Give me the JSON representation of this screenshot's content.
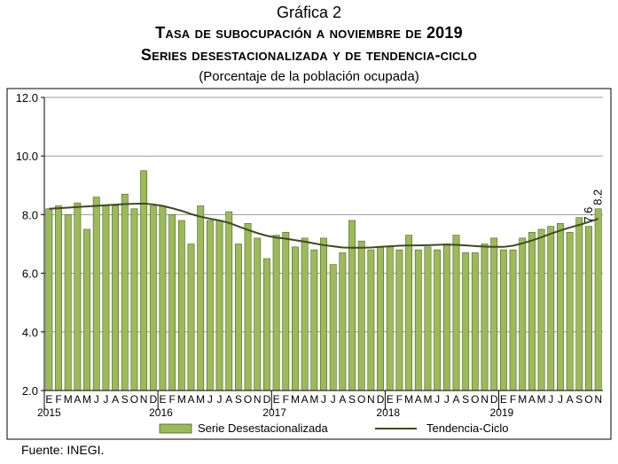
{
  "figure_label": "Gráfica 2",
  "title_line1": "Tasa de subocupación a noviembre de 2019",
  "title_line2": "Series desestacionalizada y de tendencia-ciclo",
  "subtitle": "(Porcentaje de la población ocupada)",
  "source": "Fuente: INEGI.",
  "colors": {
    "bar_fill": "#9bbb59",
    "bar_stroke": "#4f6228",
    "trend": "#404a1f",
    "grid": "#9a9a9a"
  },
  "chart_data": {
    "type": "bar",
    "title": "Tasa de subocupación a noviembre de 2019",
    "ylim": [
      2.0,
      12.0
    ],
    "yticks": [
      "2.0",
      "4.0",
      "6.0",
      "8.0",
      "10.0",
      "12.0"
    ],
    "grid": true,
    "legend_position": "bottom",
    "month_labels": [
      "E",
      "F",
      "M",
      "A",
      "M",
      "J",
      "J",
      "A",
      "S",
      "O",
      "N",
      "D"
    ],
    "years": [
      "2015",
      "2016",
      "2017",
      "2018",
      "2019"
    ],
    "annotations": [
      "7.6",
      "8.2"
    ],
    "categories": [
      "2015-01",
      "2015-02",
      "2015-03",
      "2015-04",
      "2015-05",
      "2015-06",
      "2015-07",
      "2015-08",
      "2015-09",
      "2015-10",
      "2015-11",
      "2015-12",
      "2016-01",
      "2016-02",
      "2016-03",
      "2016-04",
      "2016-05",
      "2016-06",
      "2016-07",
      "2016-08",
      "2016-09",
      "2016-10",
      "2016-11",
      "2016-12",
      "2017-01",
      "2017-02",
      "2017-03",
      "2017-04",
      "2017-05",
      "2017-06",
      "2017-07",
      "2017-08",
      "2017-09",
      "2017-10",
      "2017-11",
      "2017-12",
      "2018-01",
      "2018-02",
      "2018-03",
      "2018-04",
      "2018-05",
      "2018-06",
      "2018-07",
      "2018-08",
      "2018-09",
      "2018-10",
      "2018-11",
      "2018-12",
      "2019-01",
      "2019-02",
      "2019-03",
      "2019-04",
      "2019-05",
      "2019-06",
      "2019-07",
      "2019-08",
      "2019-09",
      "2019-10",
      "2019-11"
    ],
    "series": [
      {
        "name": "Serie Desestacionalizada",
        "kind": "bar",
        "values": [
          8.2,
          8.3,
          8.0,
          8.4,
          7.5,
          8.6,
          8.3,
          8.3,
          8.7,
          8.2,
          9.5,
          8.3,
          8.3,
          8.0,
          7.8,
          7.0,
          8.3,
          7.8,
          7.8,
          8.1,
          7.0,
          7.7,
          7.2,
          6.5,
          7.3,
          7.4,
          6.9,
          7.2,
          6.8,
          7.2,
          6.3,
          6.7,
          7.8,
          7.1,
          6.8,
          6.9,
          6.9,
          6.8,
          7.3,
          6.8,
          6.9,
          6.8,
          7.0,
          7.3,
          6.7,
          6.7,
          7.0,
          7.2,
          6.8,
          6.8,
          7.2,
          7.4,
          7.5,
          7.6,
          7.7,
          7.4,
          7.9,
          7.6,
          8.2
        ]
      },
      {
        "name": "Tendencia-Ciclo",
        "kind": "line",
        "values": [
          8.2,
          8.22,
          8.24,
          8.26,
          8.28,
          8.3,
          8.32,
          8.34,
          8.36,
          8.37,
          8.38,
          8.35,
          8.3,
          8.22,
          8.13,
          8.02,
          7.93,
          7.86,
          7.8,
          7.72,
          7.6,
          7.48,
          7.37,
          7.28,
          7.22,
          7.18,
          7.13,
          7.08,
          7.02,
          6.96,
          6.92,
          6.88,
          6.87,
          6.87,
          6.88,
          6.9,
          6.92,
          6.94,
          6.95,
          6.95,
          6.96,
          6.97,
          6.98,
          6.97,
          6.95,
          6.93,
          6.91,
          6.9,
          6.9,
          6.94,
          7.02,
          7.12,
          7.23,
          7.35,
          7.46,
          7.56,
          7.65,
          7.75,
          7.86
        ]
      }
    ]
  }
}
